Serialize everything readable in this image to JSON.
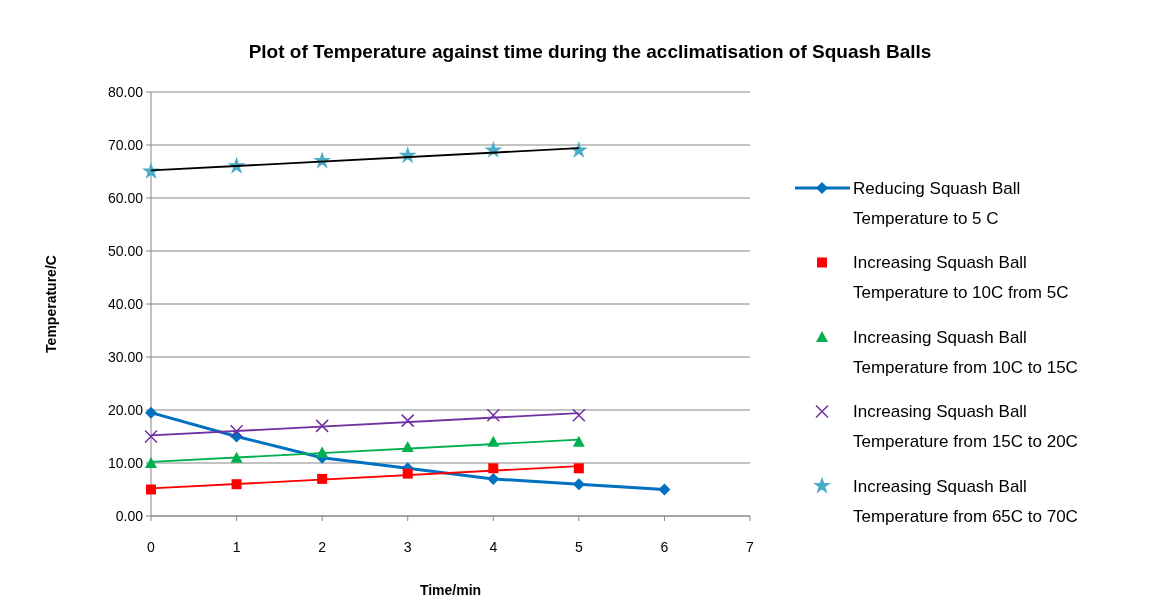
{
  "chart_data": {
    "type": "scatter",
    "title": "Plot of Temperature against time during the acclimatisation of Squash Balls",
    "xlabel": "Time/min",
    "ylabel": "Temperature/C",
    "xlim": [
      0,
      7
    ],
    "xticks": [
      0,
      1,
      2,
      3,
      4,
      5,
      6,
      7
    ],
    "ylim": [
      0,
      80
    ],
    "yticks": [
      {
        "value": 0,
        "label": "0.00"
      },
      {
        "value": 10,
        "label": "10.00"
      },
      {
        "value": 20,
        "label": "20.00"
      },
      {
        "value": 30,
        "label": "30.00"
      },
      {
        "value": 40,
        "label": "40.00"
      },
      {
        "value": 50,
        "label": "50.00"
      },
      {
        "value": 60,
        "label": "60.00"
      },
      {
        "value": 70,
        "label": "70.00"
      },
      {
        "value": 80,
        "label": "80.00"
      }
    ],
    "grid": "y",
    "legend": "right",
    "series": [
      {
        "type": "line",
        "name": "Reducing Squash Ball Temperature to 5 C",
        "color": "#0070c0",
        "marker": "diamond",
        "x": [
          0,
          1,
          2,
          3,
          4,
          5,
          6
        ],
        "values": [
          19.5,
          15,
          11,
          9,
          7,
          6,
          5
        ]
      },
      {
        "name": "Increasing Squash Ball Temperature to 10C from 5C",
        "color": "#ff0000",
        "marker": "square",
        "x": [
          0,
          1,
          2,
          3,
          4,
          5
        ],
        "values": [
          5,
          6,
          7,
          8,
          9,
          9
        ]
      },
      {
        "name": "Increasing Squash Ball Temperature from 10C to 15C",
        "color": "#00b050",
        "marker": "triangle",
        "x": [
          0,
          1,
          2,
          3,
          4,
          5
        ],
        "values": [
          10,
          11,
          12,
          13,
          14,
          14
        ]
      },
      {
        "name": "Increasing Squash Ball Temperature from 15C to 20C",
        "color": "#7030a0",
        "marker": "cross",
        "x": [
          0,
          1,
          2,
          3,
          4,
          5
        ],
        "values": [
          15,
          16,
          17,
          18,
          19,
          19
        ]
      },
      {
        "name": "Increasing Squash Ball Temperature from 65C to 70C",
        "color": "#4bacc6",
        "marker": "star",
        "x": [
          0,
          1,
          2,
          3,
          4,
          5
        ],
        "values": [
          65,
          66,
          67,
          68,
          69,
          69
        ]
      },
      {
        "type": "line",
        "color": "#ff0000",
        "marker": "none",
        "x": [
          0,
          5
        ],
        "values": [
          5.2,
          9.4
        ]
      },
      {
        "type": "line",
        "color": "#00b050",
        "marker": "none",
        "x": [
          0,
          5
        ],
        "values": [
          10.2,
          14.4
        ]
      },
      {
        "type": "line",
        "color": "#7030a0",
        "marker": "none",
        "x": [
          0,
          5
        ],
        "values": [
          15.2,
          19.4
        ]
      },
      {
        "type": "line",
        "color": "#000000",
        "marker": "none",
        "x": [
          0,
          5
        ],
        "values": [
          65.2,
          69.4
        ]
      }
    ]
  }
}
